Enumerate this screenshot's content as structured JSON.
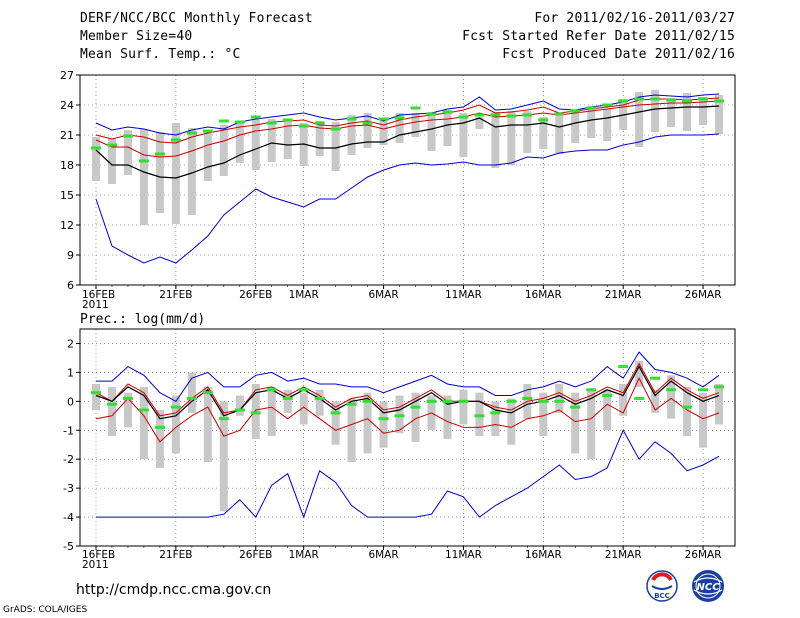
{
  "header": {
    "title": "DERF/NCC/BCC Monthly Forecast",
    "member_size": "Member Size=40",
    "variable": "Mean Surf. Temp.: °C",
    "period": "For 2011/02/16-2011/03/27",
    "started": "Fcst Started Refer Date 2011/02/15",
    "produced": "Fcst Produced Date 2011/02/16"
  },
  "footer": {
    "url": "http://cmdp.ncc.cma.gov.cn",
    "credit": "GrADS: COLA/IGES",
    "logo_bcc": "BCC",
    "logo_ncc": "NCC"
  },
  "colors": {
    "max_min": "#0000cc",
    "median": "#000000",
    "mean": "#cc0000",
    "member": "#33dd33",
    "box": "#c8c8c8",
    "grid": "#555555"
  },
  "chart_data": [
    {
      "type": "line",
      "title": "Mean Surf. Temp.: °C",
      "ylim": [
        6,
        27
      ],
      "yticks": [
        6,
        9,
        12,
        15,
        18,
        21,
        24,
        27
      ],
      "xticks": [
        "16FEB\n2011",
        "21FEB",
        "26FEB",
        "1MAR",
        "6MAR",
        "11MAR",
        "16MAR",
        "21MAR",
        "26MAR"
      ],
      "xtick_days": [
        1,
        6,
        11,
        14,
        19,
        24,
        29,
        34,
        39
      ],
      "days": 40,
      "series": [
        {
          "name": "max",
          "values": [
            22.2,
            21.5,
            21.8,
            21.6,
            21.2,
            21.0,
            21.5,
            21.8,
            21.6,
            22.3,
            22.6,
            22.8,
            23.0,
            23.2,
            22.8,
            22.5,
            22.7,
            22.9,
            22.4,
            23.0,
            23.1,
            23.2,
            23.6,
            23.8,
            24.8,
            23.5,
            23.6,
            24.0,
            24.4,
            23.6,
            23.5,
            23.8,
            24.0,
            24.3,
            24.8,
            25.0,
            24.9,
            24.8,
            25.0,
            25.1
          ]
        },
        {
          "name": "p75",
          "values": [
            21.0,
            20.6,
            21.0,
            20.8,
            20.3,
            20.2,
            20.8,
            21.2,
            21.5,
            21.8,
            22.0,
            22.3,
            22.4,
            22.5,
            22.0,
            21.9,
            22.2,
            22.4,
            22.0,
            22.5,
            22.8,
            23.0,
            23.2,
            23.5,
            24.0,
            23.2,
            23.3,
            23.5,
            23.8,
            23.2,
            23.4,
            23.6,
            23.8,
            24.0,
            24.5,
            24.6,
            24.6,
            24.5,
            24.6,
            24.7
          ]
        },
        {
          "name": "mean",
          "values": [
            20.5,
            19.8,
            19.8,
            19.0,
            18.8,
            18.9,
            19.4,
            20.0,
            20.4,
            21.0,
            21.4,
            21.6,
            21.9,
            22.0,
            21.7,
            21.6,
            21.9,
            22.0,
            21.6,
            22.0,
            22.3,
            22.5,
            22.6,
            22.8,
            23.2,
            22.8,
            22.9,
            23.0,
            23.2,
            23.0,
            23.2,
            23.4,
            23.6,
            23.8,
            24.0,
            24.1,
            24.2,
            24.2,
            24.3,
            24.4
          ]
        },
        {
          "name": "median",
          "values": [
            19.5,
            18.0,
            18.0,
            17.3,
            16.8,
            16.7,
            17.2,
            17.8,
            18.2,
            19.0,
            19.6,
            20.2,
            20.0,
            20.1,
            19.7,
            19.7,
            20.1,
            20.3,
            20.3,
            21.0,
            21.3,
            21.6,
            22.0,
            22.2,
            22.7,
            21.8,
            22.0,
            22.0,
            22.2,
            21.8,
            22.2,
            22.5,
            22.7,
            23.0,
            23.3,
            23.6,
            23.7,
            23.8,
            23.8,
            23.9
          ]
        },
        {
          "name": "p25",
          "values": [
            19.2,
            17.8,
            17.7,
            16.8,
            16.2,
            15.8,
            16.0,
            16.9,
            17.4,
            18.5,
            19.3,
            19.9,
            19.7,
            19.5,
            19.3,
            19.2,
            19.6,
            20.0,
            20.1,
            20.5,
            20.9,
            21.2,
            21.7,
            22.0,
            22.5,
            21.6,
            21.8,
            21.8,
            22.0,
            21.6,
            22.0,
            22.4,
            22.6,
            22.9,
            23.3,
            23.5,
            23.6,
            23.7,
            23.7,
            23.8
          ]
        },
        {
          "name": "min",
          "values": [
            14.6,
            9.9,
            9.0,
            8.2,
            8.8,
            8.2,
            9.5,
            10.9,
            13.0,
            14.3,
            15.6,
            14.8,
            14.3,
            13.8,
            14.6,
            14.6,
            15.7,
            16.8,
            17.5,
            18.0,
            18.2,
            18.0,
            18.1,
            18.3,
            18.0,
            18.0,
            18.2,
            18.8,
            18.7,
            19.2,
            19.4,
            19.5,
            19.5,
            20.0,
            20.3,
            20.8,
            21.0,
            21.0,
            21.0,
            21.1
          ]
        }
      ],
      "boxes": [
        [
          16.4,
          20.8
        ],
        [
          16.1,
          20.6
        ],
        [
          17.0,
          21.5
        ],
        [
          12.0,
          21.6
        ],
        [
          13.2,
          21.3
        ],
        [
          12.1,
          22.2
        ],
        [
          13.0,
          21.7
        ],
        [
          16.4,
          21.3
        ],
        [
          16.9,
          22.0
        ],
        [
          18.2,
          22.3
        ],
        [
          17.5,
          22.6
        ],
        [
          18.3,
          22.6
        ],
        [
          18.6,
          22.4
        ],
        [
          17.9,
          22.2
        ],
        [
          18.9,
          22.4
        ],
        [
          17.4,
          22.3
        ],
        [
          19.0,
          23.0
        ],
        [
          19.7,
          23.2
        ],
        [
          20.0,
          22.7
        ],
        [
          20.2,
          23.2
        ],
        [
          20.8,
          23.2
        ],
        [
          19.4,
          23.3
        ],
        [
          19.9,
          23.5
        ],
        [
          18.8,
          23.2
        ],
        [
          21.6,
          22.8
        ],
        [
          17.7,
          23.3
        ],
        [
          18.0,
          23.4
        ],
        [
          19.2,
          23.4
        ],
        [
          19.6,
          22.8
        ],
        [
          19.1,
          23.2
        ],
        [
          20.2,
          23.3
        ],
        [
          20.7,
          23.9
        ],
        [
          20.4,
          23.6
        ],
        [
          21.5,
          24.6
        ],
        [
          19.8,
          25.3
        ],
        [
          21.3,
          25.5
        ],
        [
          21.8,
          24.7
        ],
        [
          21.4,
          25.2
        ],
        [
          22.0,
          24.8
        ],
        [
          21.1,
          25.0
        ]
      ],
      "members": [
        19.7,
        20.0,
        20.9,
        18.4,
        19.1,
        20.5,
        21.2,
        21.4,
        22.4,
        22.3,
        22.8,
        22.2,
        22.5,
        21.9,
        22.2,
        21.6,
        22.6,
        22.2,
        22.6,
        22.7,
        23.7,
        23.1,
        23.3,
        22.8,
        23.0,
        23.0,
        22.9,
        23.0,
        22.5,
        23.1,
        23.4,
        23.7,
        24.0,
        24.4,
        24.6,
        24.6,
        24.5,
        24.4,
        24.6,
        24.4
      ]
    },
    {
      "type": "line",
      "title": "Prec.: log(mm/d)",
      "ylim": [
        -5,
        2.5
      ],
      "yticks": [
        -5,
        -4,
        -3,
        -2,
        -1,
        0,
        1,
        2
      ],
      "xticks": [
        "16FEB\n2011",
        "21FEB",
        "26FEB",
        "1MAR",
        "6MAR",
        "11MAR",
        "16MAR",
        "21MAR",
        "26MAR"
      ],
      "xtick_days": [
        1,
        6,
        11,
        14,
        19,
        24,
        29,
        34,
        39
      ],
      "days": 40,
      "series": [
        {
          "name": "max",
          "values": [
            0.7,
            0.7,
            1.2,
            0.9,
            0.3,
            0.0,
            0.8,
            1.0,
            0.5,
            0.5,
            0.9,
            1.0,
            0.7,
            0.8,
            0.6,
            0.6,
            0.5,
            0.5,
            0.3,
            0.5,
            0.7,
            0.9,
            0.6,
            0.5,
            0.5,
            0.2,
            0.2,
            0.4,
            0.5,
            0.7,
            0.5,
            0.7,
            1.2,
            0.8,
            1.7,
            1.1,
            1.0,
            0.8,
            0.5,
            0.9
          ]
        },
        {
          "name": "p75",
          "values": [
            0.3,
            0.0,
            0.6,
            0.3,
            -0.5,
            -0.4,
            0.1,
            0.5,
            -0.4,
            -0.3,
            0.4,
            0.5,
            0.2,
            0.5,
            0.2,
            -0.2,
            0.1,
            0.2,
            -0.3,
            -0.2,
            0.1,
            0.4,
            0.0,
            0.0,
            0.0,
            -0.2,
            -0.3,
            0.0,
            0.1,
            0.3,
            0.0,
            0.2,
            0.5,
            0.3,
            1.3,
            0.3,
            0.8,
            0.4,
            0.1,
            0.3
          ]
        },
        {
          "name": "median",
          "values": [
            0.2,
            0.0,
            0.5,
            0.2,
            -0.6,
            -0.5,
            0.0,
            0.4,
            -0.5,
            -0.3,
            0.3,
            0.4,
            0.1,
            0.4,
            0.1,
            -0.3,
            0.0,
            0.1,
            -0.4,
            -0.3,
            0.0,
            0.3,
            -0.1,
            0.0,
            0.0,
            -0.3,
            -0.4,
            -0.1,
            0.0,
            0.2,
            -0.1,
            0.1,
            0.4,
            0.2,
            1.2,
            0.2,
            0.7,
            0.3,
            0.0,
            0.2
          ]
        },
        {
          "name": "mean",
          "values": [
            -0.6,
            -0.5,
            0.1,
            -0.5,
            -1.4,
            -0.9,
            -0.5,
            -0.2,
            -1.2,
            -1.0,
            -0.3,
            -0.2,
            -0.6,
            -0.2,
            -0.6,
            -1.0,
            -0.8,
            -0.6,
            -1.1,
            -1.0,
            -0.6,
            -0.4,
            -0.7,
            -0.9,
            -0.9,
            -0.8,
            -0.9,
            -0.6,
            -0.5,
            -0.3,
            -0.7,
            -0.6,
            -0.1,
            -0.4,
            0.8,
            -0.3,
            0.1,
            -0.3,
            -0.6,
            -0.4
          ]
        },
        {
          "name": "p25",
          "values": [
            -0.7,
            -0.6,
            -0.1,
            -0.6,
            -1.6,
            -1.1,
            -0.6,
            -0.3,
            -1.4,
            -1.1,
            -0.5,
            -0.4,
            -0.8,
            -0.5,
            -0.8,
            -1.2,
            -1.0,
            -0.8,
            -1.3,
            -1.2,
            -0.8,
            -0.6,
            -0.9,
            -1.1,
            -1.1,
            -1.0,
            -1.1,
            -0.8,
            -0.7,
            -0.5,
            -0.9,
            -0.8,
            -0.3,
            -0.6,
            0.5,
            -0.5,
            -0.2,
            -0.5,
            -0.8,
            -0.6
          ]
        },
        {
          "name": "min",
          "values": [
            -4.0,
            -4.0,
            -4.0,
            -4.0,
            -4.0,
            -4.0,
            -4.0,
            -4.0,
            -3.9,
            -3.4,
            -4.0,
            -2.9,
            -2.5,
            -4.0,
            -2.4,
            -2.8,
            -3.6,
            -4.0,
            -4.0,
            -4.0,
            -4.0,
            -3.9,
            -3.1,
            -3.3,
            -4.0,
            -3.6,
            -3.3,
            -3.0,
            -2.6,
            -2.2,
            -2.7,
            -2.6,
            -2.3,
            -1.0,
            -2.0,
            -1.4,
            -1.8,
            -2.4,
            -2.2,
            -1.9
          ]
        }
      ],
      "boxes": [
        [
          -0.3,
          0.6
        ],
        [
          -1.2,
          0.5
        ],
        [
          -0.9,
          0.3
        ],
        [
          -2.0,
          0.5
        ],
        [
          -2.3,
          -0.3
        ],
        [
          -1.8,
          0.2
        ],
        [
          -0.4,
          1.0
        ],
        [
          -2.1,
          0.5
        ],
        [
          -3.8,
          0.0
        ],
        [
          -0.5,
          0.2
        ],
        [
          -1.3,
          0.6
        ],
        [
          -1.2,
          0.5
        ],
        [
          -0.4,
          0.4
        ],
        [
          -0.8,
          0.3
        ],
        [
          -0.5,
          0.4
        ],
        [
          -1.5,
          0.0
        ],
        [
          -2.1,
          0.1
        ],
        [
          -1.8,
          0.3
        ],
        [
          -1.6,
          0.0
        ],
        [
          -1.1,
          0.2
        ],
        [
          -1.4,
          0.3
        ],
        [
          -1.0,
          0.2
        ],
        [
          -1.3,
          0.2
        ],
        [
          -0.8,
          0.4
        ],
        [
          -1.2,
          0.3
        ],
        [
          -1.2,
          0.0
        ],
        [
          -1.5,
          0.1
        ],
        [
          -0.6,
          0.6
        ],
        [
          -1.2,
          0.3
        ],
        [
          -0.4,
          0.6
        ],
        [
          -1.8,
          0.3
        ],
        [
          -2.0,
          0.4
        ],
        [
          -1.0,
          0.4
        ],
        [
          -0.5,
          0.6
        ],
        [
          0.5,
          1.4
        ],
        [
          -0.4,
          0.4
        ],
        [
          -0.6,
          0.9
        ],
        [
          -1.2,
          0.5
        ],
        [
          -1.6,
          0.3
        ],
        [
          -0.8,
          0.6
        ]
      ],
      "members": [
        0.3,
        -0.1,
        0.1,
        -0.3,
        -0.9,
        -0.2,
        0.1,
        0.3,
        -0.6,
        -0.3,
        -0.4,
        0.4,
        0.1,
        0.4,
        0.1,
        -0.4,
        -0.1,
        0.0,
        -0.6,
        -0.5,
        -0.2,
        0.0,
        0.0,
        0.0,
        -0.5,
        -0.4,
        0.0,
        0.1,
        0.0,
        0.0,
        -0.2,
        0.4,
        0.2,
        1.2,
        0.1,
        0.8,
        0.4,
        -0.2,
        0.4,
        0.5
      ]
    }
  ]
}
